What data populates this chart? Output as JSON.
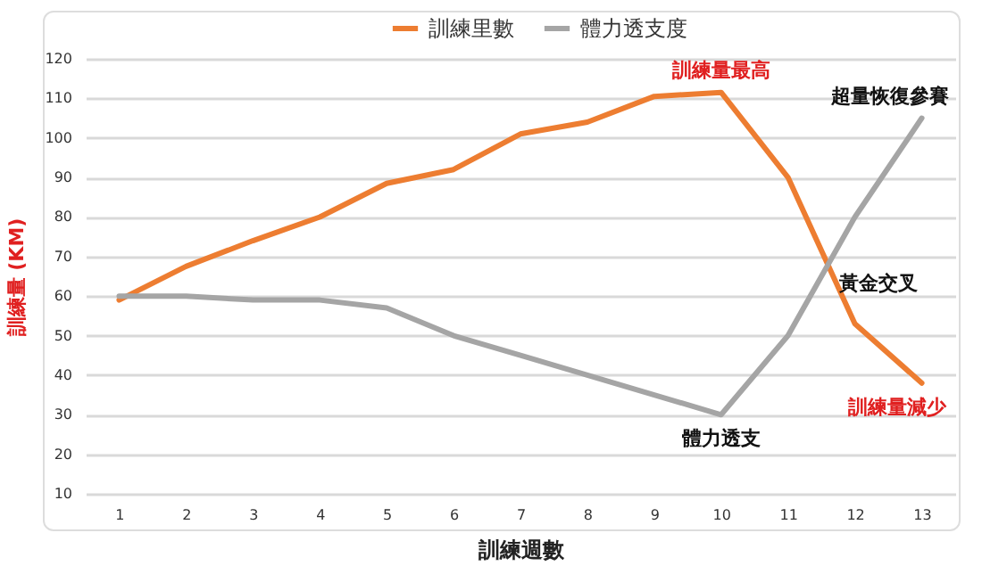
{
  "chart_data": {
    "type": "line",
    "xlabel": "訓練週數",
    "ylabel": "訓練量 (KM)",
    "x": [
      1,
      2,
      3,
      4,
      5,
      6,
      7,
      8,
      9,
      10,
      11,
      12,
      13
    ],
    "xlim": [
      0.5,
      13.5
    ],
    "xticks": [
      1,
      2,
      3,
      4,
      5,
      6,
      7,
      8,
      9,
      10,
      11,
      12,
      13
    ],
    "ylim": [
      10,
      120
    ],
    "yticks": [
      10,
      20,
      30,
      40,
      50,
      60,
      70,
      80,
      90,
      100,
      110,
      120
    ],
    "series": [
      {
        "name": "訓練里數",
        "color": "#ed7d31",
        "values": [
          59,
          67.5,
          74,
          80,
          88.5,
          92,
          101,
          104,
          110.5,
          111.5,
          90,
          53,
          38
        ]
      },
      {
        "name": "體力透支度",
        "color": "#a5a5a5",
        "values": [
          60,
          60,
          59,
          59,
          57,
          50,
          45,
          40,
          35,
          30,
          50,
          80,
          105
        ]
      }
    ],
    "annotations": [
      {
        "text": "訓練量最高",
        "x": 10,
        "y": 111.5
      },
      {
        "text": "超量恢復參賽",
        "x": 13,
        "y": 105
      },
      {
        "text": "黃金交叉",
        "x": 11.6,
        "y": 63
      },
      {
        "text": "體力透支",
        "x": 10,
        "y": 30
      },
      {
        "text": "訓練量減少",
        "x": 13,
        "y": 38
      }
    ],
    "grid": "y",
    "legend": "top",
    "marker": "none",
    "line_style": "solid"
  }
}
